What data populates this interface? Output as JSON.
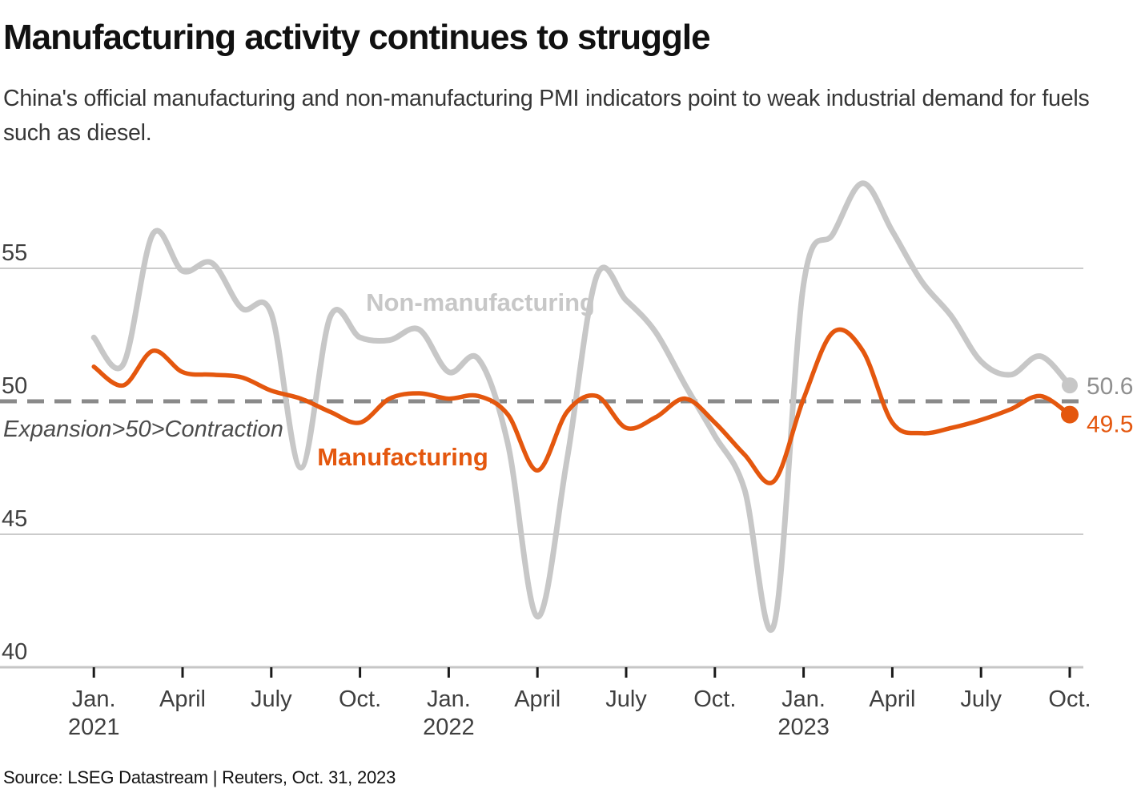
{
  "header": {
    "title": "Manufacturing activity continues to struggle",
    "subtitle": "China's official manufacturing and non-manufacturing PMI indicators point to weak industrial demand for fuels such as diesel."
  },
  "chart_data": {
    "type": "line",
    "title": "Manufacturing activity continues to struggle",
    "x_period": "Monthly, Jan. 2021 - Oct. 2023",
    "x_ticks": [
      {
        "label": "Jan.",
        "year": "2021"
      },
      {
        "label": "April",
        "year": ""
      },
      {
        "label": "July",
        "year": ""
      },
      {
        "label": "Oct.",
        "year": ""
      },
      {
        "label": "Jan.",
        "year": "2022"
      },
      {
        "label": "April",
        "year": ""
      },
      {
        "label": "July",
        "year": ""
      },
      {
        "label": "Oct.",
        "year": ""
      },
      {
        "label": "Jan.",
        "year": "2023"
      },
      {
        "label": "April",
        "year": ""
      },
      {
        "label": "July",
        "year": ""
      },
      {
        "label": "Oct.",
        "year": ""
      }
    ],
    "y_ticks": [
      55,
      50,
      45,
      40
    ],
    "y_gridlines": [
      55,
      45
    ],
    "ylim": [
      40,
      58.8
    ],
    "grid": true,
    "legend_position": "inline-labels",
    "threshold": {
      "value": 50,
      "label": "Expansion>50>Contraction",
      "color": "#8a8a8a"
    },
    "series": [
      {
        "name": "Non-manufacturing",
        "color": "#c7c7c7",
        "end_label": "50.6",
        "end_label_color": "#8f8f8f",
        "values": [
          52.4,
          51.4,
          56.3,
          54.9,
          55.2,
          53.5,
          53.3,
          47.5,
          53.2,
          52.4,
          52.3,
          52.7,
          51.1,
          51.6,
          48.4,
          41.9,
          47.8,
          54.7,
          53.8,
          52.6,
          50.6,
          48.7,
          46.7,
          41.6,
          54.4,
          56.3,
          58.2,
          56.4,
          54.5,
          53.2,
          51.5,
          51.0,
          51.7,
          50.6
        ]
      },
      {
        "name": "Manufacturing",
        "color": "#e4570e",
        "end_label": "49.5",
        "end_label_color": "#e4570e",
        "values": [
          51.3,
          50.6,
          51.9,
          51.1,
          51.0,
          50.9,
          50.4,
          50.1,
          49.6,
          49.2,
          50.1,
          50.3,
          50.1,
          50.2,
          49.5,
          47.4,
          49.6,
          50.2,
          49.0,
          49.4,
          50.1,
          49.2,
          48.0,
          47.0,
          50.1,
          52.6,
          51.9,
          49.2,
          48.8,
          49.0,
          49.3,
          49.7,
          50.2,
          49.5
        ]
      }
    ],
    "colors": {
      "grid": "#cbcbcb",
      "axis": "#c6c6c6",
      "tick": "#1a1a1a",
      "axis_text": "#3f3f3f"
    }
  },
  "footer": {
    "source": "Source: LSEG Datastream | Reuters, Oct. 31, 2023"
  }
}
